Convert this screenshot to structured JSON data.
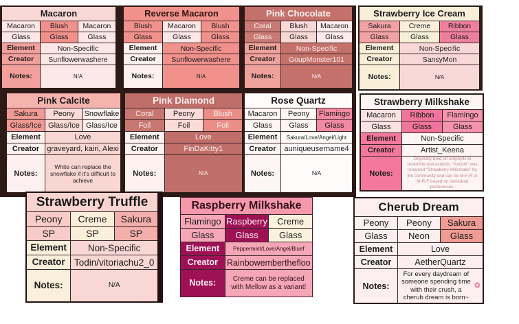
{
  "palette": {
    "dark_frame": "#2d1a16",
    "salmon": "#f0918c",
    "light_pink": "#fbe7e5",
    "dusty_rose": "#c4706b",
    "cream": "#f8efd9",
    "hot_pink": "#ee7f9d",
    "flamingo_pink": "#f28ba1",
    "raspberry": "#9e1255",
    "truffle_pink": "#f8d3d0"
  },
  "labels": {
    "element": "Element",
    "creator": "Creator",
    "notes": "Notes:"
  },
  "cards": [
    {
      "id": "macaron",
      "title": "Macaron",
      "grid": [
        [
          "Macaron",
          "Blush",
          "Macaron"
        ],
        [
          "Glass",
          "Glass",
          "Glass"
        ]
      ],
      "element": "Non-Specific",
      "creator": "Sunflowerwashere",
      "notes": "N/A"
    },
    {
      "id": "reverse-macaron",
      "title": "Reverse Macaron",
      "grid": [
        [
          "Blush",
          "Macaron",
          "Blush"
        ],
        [
          "Glass",
          "Glass",
          "Glass"
        ]
      ],
      "element": "Non-Specific",
      "creator": "Sunflowerwashere",
      "notes": "N/A"
    },
    {
      "id": "pink-chocolate",
      "title": "Pink Chocolate",
      "grid": [
        [
          "Coral",
          "Blush",
          "Macaron"
        ],
        [
          "Glass",
          "Glass",
          "Glass"
        ]
      ],
      "element": "Non-Specific",
      "creator": "GoupMonster101",
      "notes": "N/A"
    },
    {
      "id": "strawberry-ice-cream",
      "title": "Strawberry Ice Cream",
      "grid": [
        [
          "Sakura",
          "Creme",
          "Ribbon"
        ],
        [
          "Glass",
          "Glass",
          "Glass"
        ]
      ],
      "element": "Non-Specific",
      "creator": "SansyMon",
      "notes": "N/A"
    },
    {
      "id": "pink-calcite",
      "title": "Pink Calcite",
      "grid": [
        [
          "Sakura",
          "Peony",
          "Snowflake"
        ],
        [
          "Glass/Ice",
          "Glass/Ice",
          "Glass/Ice"
        ]
      ],
      "element": "Love",
      "creator": "graveyard, kairi, Alexi",
      "notes": "White can replace the snowflake if it's difficult to achieve"
    },
    {
      "id": "pink-diamond",
      "title": "Pink Diamond",
      "grid": [
        [
          "Coral",
          "Peony",
          "Blush"
        ],
        [
          "Foil",
          "Foil",
          "Foil"
        ]
      ],
      "element": "Love",
      "creator": "FinDaKitty1",
      "notes": "N/A"
    },
    {
      "id": "rose-quartz",
      "title": "Rose Quartz",
      "grid": [
        [
          "Macaron",
          "Peony",
          "Flamingo"
        ],
        [
          "Glass",
          "Glass",
          "Glass"
        ]
      ],
      "element": "Sakura/Love/Angel/Light",
      "creator": "auniqueusername4",
      "notes": "N/A"
    },
    {
      "id": "strawberry-milkshake",
      "title": "Strawberry Milkshake",
      "grid": [
        [
          "Macaron",
          "Ribbon",
          "Flamingo"
        ],
        [
          "Glass",
          "Glass",
          "Glass"
        ]
      ],
      "element": "Non-Specific",
      "creator": "Artist_Keena",
      "notes": "Originally bred on amphylls to resemble real axolotls. “Axolotl” was renamed “Strawberry Milkshake” by the community and can be M-F-R or M-R-F based on individual preferences."
    },
    {
      "id": "strawberry-truffle",
      "title": "Strawberry Truffle",
      "grid": [
        [
          "Peony",
          "Creme",
          "Sakura"
        ],
        [
          "SP",
          "SP",
          "SP"
        ]
      ],
      "element": "Non-Specific",
      "creator": "Todin/vitoriachu2_0",
      "notes": "N/A"
    },
    {
      "id": "raspberry-milkshake",
      "title": "Raspberry Milkshake",
      "grid": [
        [
          "Flamingo",
          "Raspberry",
          "Creme"
        ],
        [
          "Glass",
          "Glass",
          "Glass"
        ]
      ],
      "element": "Peppermint/Love/Angel/Bluef",
      "creator": "Rainbowemberthefloo",
      "notes": "Creme can be replaced with Mellow as a variant!"
    },
    {
      "id": "cherub-dream",
      "title": "Cherub Dream",
      "grid": [
        [
          "Peony",
          "Peony",
          "Sakura"
        ],
        [
          "Glass",
          "Neon",
          "Glass"
        ]
      ],
      "element": "Love",
      "creator": "AetherQuartz",
      "notes": "For every daydream of someone spending time with their crush, a cherub dream is born~",
      "notes_icon": "✿"
    }
  ]
}
